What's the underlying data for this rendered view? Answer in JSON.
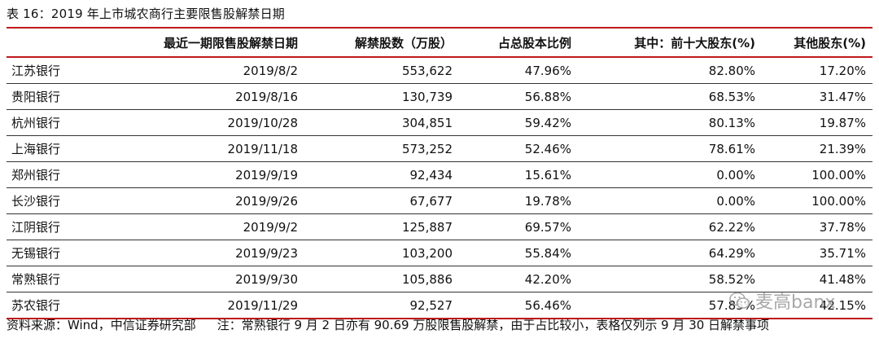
{
  "title": "表 16：2019 年上市城农商行主要限售股解禁日期",
  "table": {
    "headers": [
      "",
      "最近一期限售股解禁日期",
      "解禁股数（万股）",
      "占总股本比例",
      "其中：前十大股东(%)",
      "其他股东(%)"
    ],
    "rows": [
      [
        "江苏银行",
        "2019/8/2",
        "553,622",
        "47.96%",
        "82.80%",
        "17.20%"
      ],
      [
        "贵阳银行",
        "2019/8/16",
        "130,739",
        "56.88%",
        "68.53%",
        "31.47%"
      ],
      [
        "杭州银行",
        "2019/10/28",
        "304,851",
        "59.42%",
        "80.13%",
        "19.87%"
      ],
      [
        "上海银行",
        "2019/11/18",
        "573,252",
        "52.46%",
        "78.61%",
        "21.39%"
      ],
      [
        "郑州银行",
        "2019/9/19",
        "92,434",
        "15.61%",
        "0.00%",
        "100.00%"
      ],
      [
        "长沙银行",
        "2019/9/26",
        "67,677",
        "19.78%",
        "0.00%",
        "100.00%"
      ],
      [
        "江阴银行",
        "2019/9/2",
        "125,887",
        "69.57%",
        "62.22%",
        "37.78%"
      ],
      [
        "无锡银行",
        "2019/9/23",
        "103,200",
        "55.84%",
        "64.29%",
        "35.71%"
      ],
      [
        "常熟银行",
        "2019/9/30",
        "105,886",
        "42.20%",
        "58.52%",
        "41.48%"
      ],
      [
        "苏农银行",
        "2019/11/29",
        "92,527",
        "56.46%",
        "57.85%",
        "42.15%"
      ]
    ]
  },
  "footer": {
    "source": "资料来源：Wind，中信证券研究部",
    "note": "注：常熟银行 9 月 2 日亦有 90.69 万股限售股解禁，由于占比较小，表格仅列示 9 月 30 日解禁事项"
  },
  "watermark": {
    "text": "麦高banx",
    "icon": "wechat-icon"
  }
}
